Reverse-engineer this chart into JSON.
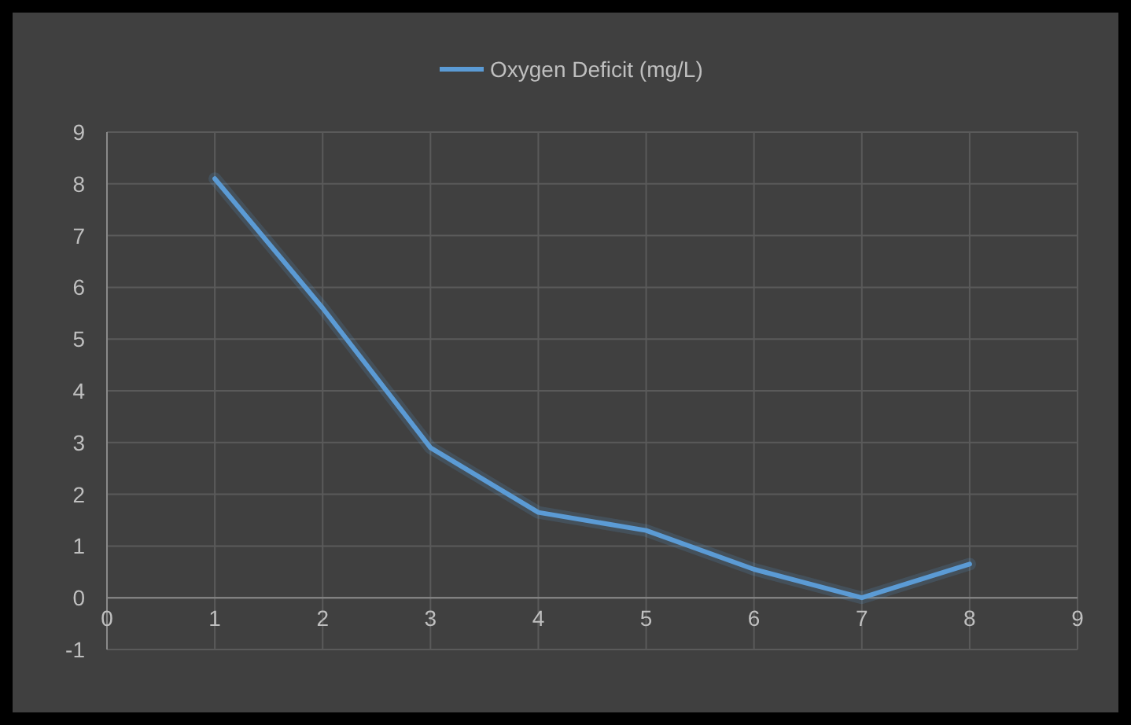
{
  "chart_data": {
    "type": "line",
    "x": [
      1,
      2,
      3,
      4,
      5,
      6,
      7,
      8
    ],
    "series": [
      {
        "name": "Oxygen Deficit (mg/L)",
        "color": "#5b9bd5",
        "values": [
          8.1,
          5.6,
          2.9,
          1.65,
          1.3,
          0.55,
          0,
          0.65
        ]
      }
    ],
    "xlim": [
      0,
      9
    ],
    "xticks": [
      0,
      1,
      2,
      3,
      4,
      5,
      6,
      7,
      8,
      9
    ],
    "ylim": [
      -1,
      9
    ],
    "yticks": [
      -1,
      0,
      1,
      2,
      3,
      4,
      5,
      6,
      7,
      8,
      9
    ],
    "grid": true,
    "legend": "top",
    "marker": "none",
    "line_style": "solid"
  }
}
